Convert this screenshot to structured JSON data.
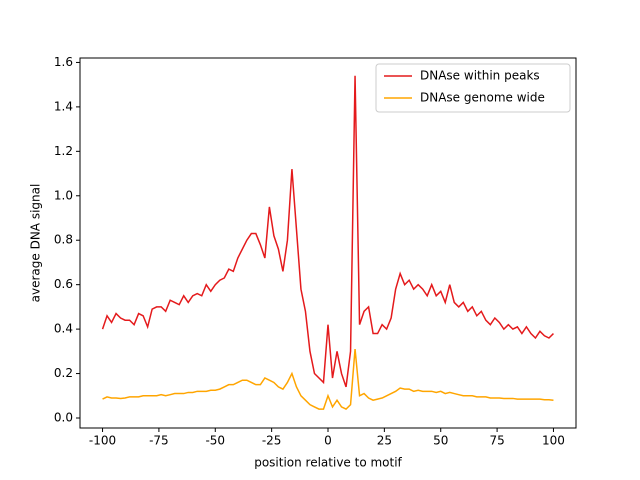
{
  "chart_data": {
    "type": "line",
    "xlabel": "position relative to motif",
    "ylabel": "average DNA signal",
    "x": [
      -100,
      -98,
      -96,
      -94,
      -92,
      -90,
      -88,
      -86,
      -84,
      -82,
      -80,
      -78,
      -76,
      -74,
      -72,
      -70,
      -68,
      -66,
      -64,
      -62,
      -60,
      -58,
      -56,
      -54,
      -52,
      -50,
      -48,
      -46,
      -44,
      -42,
      -40,
      -38,
      -36,
      -34,
      -32,
      -30,
      -28,
      -26,
      -24,
      -22,
      -20,
      -18,
      -16,
      -14,
      -12,
      -10,
      -8,
      -6,
      -4,
      -2,
      0,
      2,
      4,
      6,
      8,
      10,
      12,
      14,
      16,
      18,
      20,
      22,
      24,
      26,
      28,
      30,
      32,
      34,
      36,
      38,
      40,
      42,
      44,
      46,
      48,
      50,
      52,
      54,
      56,
      58,
      60,
      62,
      64,
      66,
      68,
      70,
      72,
      74,
      76,
      78,
      80,
      82,
      84,
      86,
      88,
      90,
      92,
      94,
      96,
      98,
      100
    ],
    "series": [
      {
        "name": "DNAse within peaks",
        "color": "#e41a1c",
        "values": [
          0.4,
          0.46,
          0.43,
          0.47,
          0.45,
          0.44,
          0.44,
          0.42,
          0.47,
          0.46,
          0.41,
          0.49,
          0.5,
          0.5,
          0.48,
          0.53,
          0.52,
          0.51,
          0.55,
          0.52,
          0.55,
          0.56,
          0.55,
          0.6,
          0.57,
          0.6,
          0.62,
          0.63,
          0.67,
          0.66,
          0.72,
          0.76,
          0.8,
          0.83,
          0.83,
          0.78,
          0.72,
          0.95,
          0.82,
          0.76,
          0.66,
          0.8,
          1.12,
          0.85,
          0.58,
          0.48,
          0.3,
          0.2,
          0.18,
          0.16,
          0.42,
          0.18,
          0.3,
          0.2,
          0.14,
          0.3,
          1.54,
          0.42,
          0.48,
          0.5,
          0.38,
          0.38,
          0.42,
          0.4,
          0.45,
          0.58,
          0.65,
          0.6,
          0.62,
          0.58,
          0.6,
          0.58,
          0.55,
          0.6,
          0.55,
          0.57,
          0.52,
          0.6,
          0.52,
          0.5,
          0.52,
          0.48,
          0.5,
          0.46,
          0.48,
          0.44,
          0.42,
          0.45,
          0.43,
          0.4,
          0.42,
          0.4,
          0.41,
          0.38,
          0.41,
          0.38,
          0.36,
          0.39,
          0.37,
          0.36,
          0.38
        ]
      },
      {
        "name": "DNAse genome wide",
        "color": "#ffa500",
        "values": [
          0.085,
          0.095,
          0.09,
          0.09,
          0.088,
          0.09,
          0.095,
          0.095,
          0.095,
          0.1,
          0.1,
          0.1,
          0.1,
          0.105,
          0.1,
          0.105,
          0.11,
          0.11,
          0.11,
          0.115,
          0.115,
          0.12,
          0.12,
          0.12,
          0.125,
          0.125,
          0.13,
          0.14,
          0.15,
          0.15,
          0.16,
          0.17,
          0.17,
          0.16,
          0.15,
          0.15,
          0.18,
          0.17,
          0.16,
          0.14,
          0.13,
          0.16,
          0.2,
          0.14,
          0.1,
          0.08,
          0.06,
          0.05,
          0.04,
          0.04,
          0.1,
          0.05,
          0.08,
          0.05,
          0.04,
          0.06,
          0.31,
          0.1,
          0.11,
          0.09,
          0.08,
          0.085,
          0.09,
          0.1,
          0.11,
          0.12,
          0.135,
          0.13,
          0.13,
          0.12,
          0.125,
          0.12,
          0.12,
          0.12,
          0.115,
          0.12,
          0.11,
          0.115,
          0.11,
          0.105,
          0.1,
          0.1,
          0.1,
          0.095,
          0.095,
          0.095,
          0.09,
          0.09,
          0.09,
          0.088,
          0.088,
          0.088,
          0.085,
          0.085,
          0.085,
          0.085,
          0.085,
          0.085,
          0.082,
          0.082,
          0.08
        ]
      }
    ],
    "xlim": [
      -110,
      110
    ],
    "xticks": [
      -100,
      -75,
      -50,
      -25,
      0,
      25,
      50,
      75,
      100
    ],
    "ylim": [
      -0.045,
      1.62
    ],
    "yticks": [
      {
        "value": 0,
        "label": "0.0"
      },
      0.2,
      0.4,
      0.6,
      0.8,
      {
        "value": 1,
        "label": "1.0"
      },
      1.2,
      1.4,
      1.6
    ],
    "grid": false,
    "legend": "upper right"
  }
}
